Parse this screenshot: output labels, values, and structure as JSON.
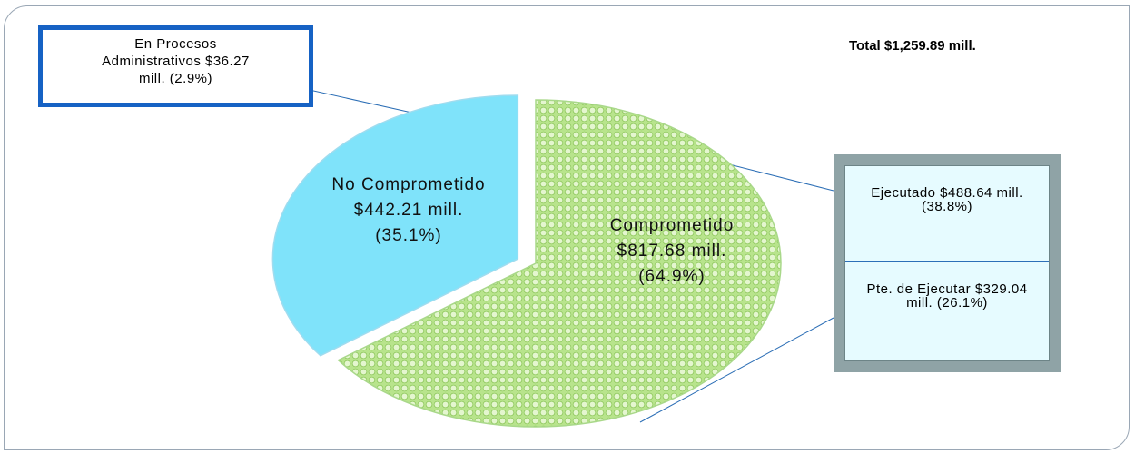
{
  "chart_data": {
    "type": "pie",
    "title": "Total $1,259.89 mill.",
    "categories": [
      "Comprometido",
      "No Comprometido"
    ],
    "values": [
      64.9,
      35.1
    ],
    "value_labels": [
      "$817.68 mill. (64.9%)",
      "$442.21 mill. (35.1%)"
    ],
    "colors": [
      "#9fd86a",
      "#7fe3fa"
    ],
    "annotations": [
      {
        "text": "En Procesos Administrativos $36.27 mill. (2.9%)"
      },
      {
        "text": "Ejecutado $488.64 mill. (38.8%)"
      },
      {
        "text": "Pte. de Ejecutar $329.04 mill. (26.1%)"
      }
    ]
  }
}
